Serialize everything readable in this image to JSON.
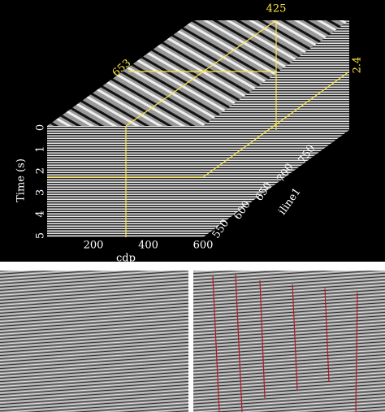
{
  "cube": {
    "slice_labels": {
      "crossline": "425",
      "inline": "653",
      "time": "2.4"
    },
    "time_axis": {
      "label": "Time (s)",
      "ticks": [
        0,
        1,
        2,
        3,
        4,
        5
      ]
    },
    "cdp_axis": {
      "label": "cdp",
      "ticks": [
        200,
        400,
        600
      ]
    },
    "iline_axis": {
      "label": "iline1",
      "ticks": [
        550,
        600,
        650,
        700,
        750
      ]
    }
  }
}
